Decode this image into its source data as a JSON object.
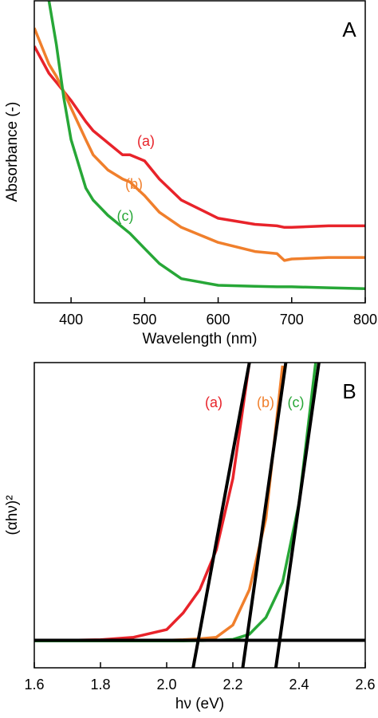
{
  "chart_data": [
    {
      "type": "line",
      "panel_label": "A",
      "xlabel": "Wavelength (nm)",
      "ylabel": "Absorbance (-)",
      "xlim": [
        350,
        800
      ],
      "xticks": [
        400,
        500,
        600,
        700,
        800
      ],
      "ylim": [
        0,
        1
      ],
      "x": [
        350,
        370,
        380,
        390,
        400,
        420,
        430,
        450,
        470,
        480,
        500,
        520,
        550,
        600,
        650,
        680,
        690,
        700,
        750,
        800
      ],
      "series": [
        {
          "name": "(a)",
          "color": "#e8232a",
          "values": [
            0.85,
            0.76,
            0.73,
            0.7,
            0.67,
            0.6,
            0.57,
            0.53,
            0.49,
            0.49,
            0.47,
            0.41,
            0.34,
            0.28,
            0.26,
            0.255,
            0.25,
            0.25,
            0.255,
            0.255
          ]
        },
        {
          "name": "(b)",
          "color": "#f07f2c",
          "values": [
            0.91,
            0.79,
            0.75,
            0.7,
            0.645,
            0.54,
            0.49,
            0.44,
            0.41,
            0.4,
            0.355,
            0.3,
            0.25,
            0.2,
            0.17,
            0.163,
            0.14,
            0.145,
            0.15,
            0.15
          ]
        },
        {
          "name": "(c)",
          "color": "#27a737",
          "values": [
            null,
            1.0,
            0.855,
            0.68,
            0.54,
            0.38,
            0.34,
            0.29,
            0.25,
            0.23,
            0.18,
            0.13,
            0.08,
            0.058,
            0.055,
            0.053,
            0.053,
            0.053,
            0.05,
            0.047
          ]
        }
      ]
    },
    {
      "type": "line",
      "panel_label": "B",
      "xlabel": "hν (eV)",
      "ylabel": "(αhν)²",
      "xlim": [
        1.6,
        2.6
      ],
      "xticks": [
        1.6,
        1.8,
        {
          "value": 2,
          "label": "2.0"
        },
        2.2,
        2.4,
        2.6
      ],
      "ylim": [
        0,
        1
      ],
      "x": [
        1.6,
        1.7,
        1.8,
        1.9,
        2.0,
        2.05,
        2.1,
        2.15,
        2.2,
        2.25,
        2.3,
        2.35,
        2.4,
        2.45
      ],
      "series": [
        {
          "name": "(a)",
          "color": "#e8232a",
          "values": [
            0.09,
            0.09,
            0.092,
            0.1,
            0.125,
            0.18,
            0.256,
            0.386,
            0.62,
            1.0,
            null,
            null,
            null,
            null
          ]
        },
        {
          "name": "(b)",
          "color": "#f07f2c",
          "values": [
            0.088,
            0.088,
            0.088,
            0.089,
            0.09,
            0.092,
            0.095,
            0.1,
            0.14,
            0.256,
            0.49,
            0.99,
            null,
            null
          ]
        },
        {
          "name": "(c)",
          "color": "#27a737",
          "values": [
            0.088,
            0.088,
            0.088,
            0.088,
            0.088,
            0.088,
            0.089,
            0.09,
            0.093,
            0.11,
            0.165,
            0.28,
            0.54,
            1.0
          ]
        }
      ],
      "fits": {
        "color": "#000000",
        "lines": [
          {
            "x": [
              1.6,
              2.6
            ],
            "values": [
              0.09,
              0.09
            ]
          },
          {
            "x": [
              2.08,
              2.25
            ],
            "values": [
              0,
              1
            ]
          },
          {
            "x": [
              2.23,
              2.36
            ],
            "values": [
              0,
              1
            ]
          },
          {
            "x": [
              2.33,
              2.46
            ],
            "values": [
              0,
              1
            ]
          }
        ]
      }
    }
  ]
}
